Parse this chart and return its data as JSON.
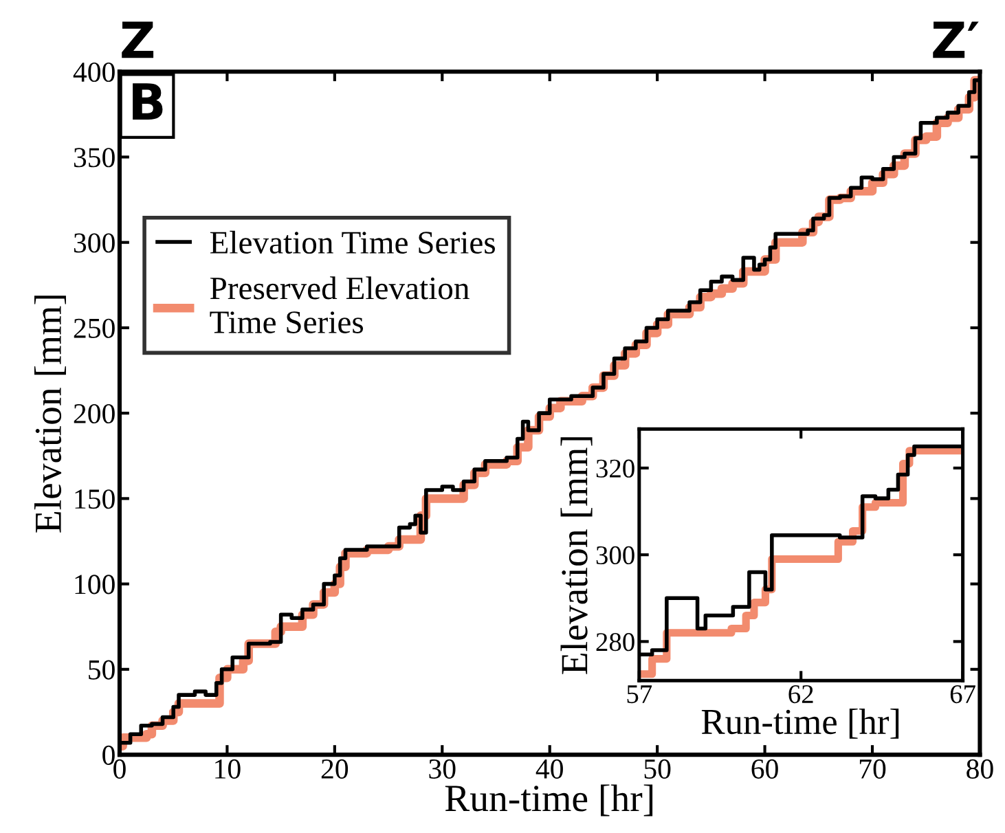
{
  "chart_data": [
    {
      "type": "step",
      "xlabel": "Run-time [hr]",
      "ylabel": "Elevation [mm]",
      "annotations": [
        "Z",
        "Z′",
        "B"
      ],
      "xlim": [
        0,
        80
      ],
      "ylim": [
        0,
        400
      ],
      "xticks": [
        0,
        10,
        20,
        30,
        40,
        50,
        60,
        70,
        80
      ],
      "yticks": [
        0,
        50,
        100,
        150,
        200,
        250,
        300,
        350,
        400
      ],
      "grid": false,
      "legend": "top left",
      "series": [
        {
          "name": "Elevation Time Series",
          "color": "#000000",
          "x": [
            0,
            1,
            2,
            3,
            4,
            5,
            5.5,
            7,
            8,
            9,
            9.5,
            10.5,
            12,
            14,
            15,
            16,
            17,
            18,
            19,
            20,
            20.5,
            21,
            23,
            25,
            26,
            27,
            27.5,
            28,
            28.5,
            30,
            31,
            32,
            33,
            34,
            36,
            37,
            37.5,
            38,
            39,
            40,
            42,
            44,
            45,
            46,
            47,
            48,
            49,
            50,
            51,
            53,
            54,
            55,
            56,
            57,
            58,
            59,
            59.5,
            60,
            60.5,
            61,
            63.5,
            64,
            64.5,
            65.5,
            66,
            67,
            68,
            69,
            70,
            71,
            72,
            73,
            74,
            74.5,
            75.5,
            76,
            77,
            78,
            79,
            79.5,
            80
          ],
          "values": [
            7,
            12,
            17,
            18,
            22,
            28,
            35,
            37,
            35,
            42,
            50,
            57,
            65,
            66,
            82,
            80,
            85,
            88,
            100,
            105,
            115,
            120,
            122,
            122,
            133,
            135,
            140,
            130,
            155,
            157,
            155,
            160,
            167,
            172,
            174,
            185,
            195,
            190,
            200,
            208,
            210,
            215,
            223,
            232,
            238,
            242,
            250,
            255,
            260,
            265,
            272,
            277,
            280,
            278,
            291,
            284,
            287,
            290,
            297,
            305,
            305,
            307,
            314,
            316,
            326,
            327,
            332,
            338,
            337,
            343,
            350,
            352,
            361,
            370,
            370,
            373,
            376,
            380,
            388,
            395,
            395
          ]
        },
        {
          "name": "Preserved Elevation\nTime Series",
          "color": "#f28b6e",
          "x": [
            0,
            0.3,
            2.5,
            3,
            4,
            5,
            5.5,
            9,
            9.3,
            10,
            11.5,
            12,
            14,
            14.5,
            15,
            17,
            18,
            19,
            20,
            20.5,
            21,
            23,
            25,
            26,
            27.5,
            28,
            28.5,
            31,
            32,
            33,
            34,
            36,
            37,
            38,
            39,
            40,
            41,
            43,
            44,
            45,
            46,
            47,
            48,
            49,
            50,
            51,
            53,
            54,
            55,
            56,
            57,
            58,
            60,
            61,
            63,
            63.5,
            64.5,
            65,
            66,
            67,
            68,
            70,
            71,
            72,
            73,
            74,
            75,
            76,
            77,
            78,
            79,
            79.5,
            80
          ],
          "values": [
            5,
            10,
            12,
            17,
            20,
            25,
            30,
            30,
            45,
            50,
            55,
            65,
            65,
            72,
            75,
            82,
            88,
            95,
            100,
            110,
            118,
            120,
            122,
            126,
            126,
            140,
            150,
            150,
            158,
            165,
            170,
            172,
            180,
            190,
            198,
            203,
            207,
            210,
            215,
            222,
            228,
            235,
            240,
            247,
            252,
            258,
            262,
            268,
            270,
            273,
            276,
            283,
            290,
            300,
            300,
            306,
            312,
            315,
            325,
            326,
            330,
            335,
            340,
            345,
            352,
            360,
            362,
            370,
            373,
            378,
            385,
            395,
            393
          ]
        }
      ]
    },
    {
      "type": "step",
      "xlabel": "Run-time [hr]",
      "ylabel": "Elevation [mm]",
      "xlim": [
        57,
        67
      ],
      "ylim": [
        271,
        329
      ],
      "xticks": [
        57,
        62,
        67
      ],
      "yticks": [
        280,
        300,
        320
      ],
      "grid": false,
      "series": [
        {
          "color": "#000000",
          "x": [
            57,
            57.4,
            57.85,
            58.8,
            59.05,
            59.85,
            59.9,
            60.4,
            60.9,
            61.1,
            63.15,
            63.2,
            63.9,
            64.3,
            64.7,
            65.0,
            65.3,
            65.5,
            67
          ],
          "values": [
            277,
            278,
            290,
            283,
            286,
            286,
            288,
            296,
            292,
            304.5,
            304.5,
            304,
            313.5,
            313,
            315,
            318.5,
            323,
            325,
            325
          ]
        },
        {
          "color": "#f28b6e",
          "x": [
            57,
            57.4,
            57.85,
            59.85,
            60.3,
            60.55,
            60.9,
            61.1,
            63.15,
            63.6,
            63.9,
            64.3,
            65.15,
            65.35,
            67
          ],
          "values": [
            272.5,
            276,
            282,
            283,
            286,
            289,
            292,
            299,
            303,
            305.5,
            311,
            312,
            321,
            324,
            324
          ]
        }
      ]
    }
  ]
}
